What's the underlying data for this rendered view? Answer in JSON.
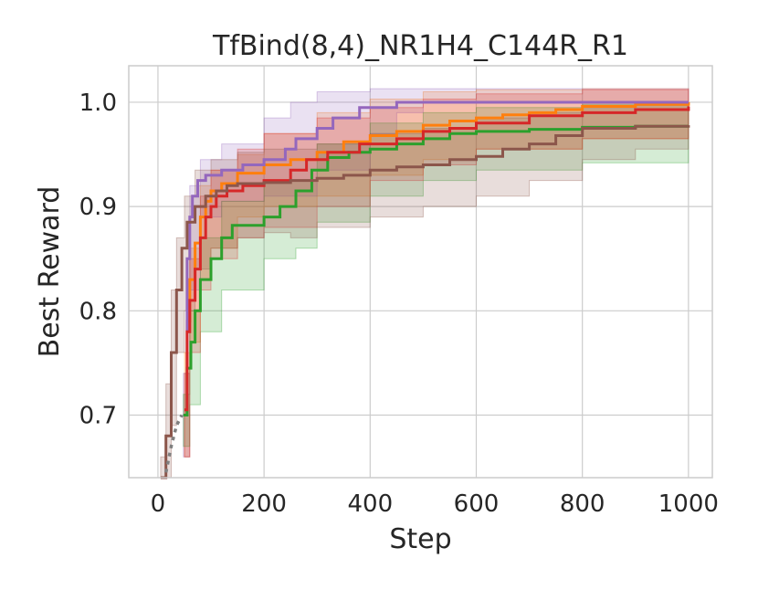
{
  "chart_data": {
    "type": "line",
    "title": "TfBind(8,4)_NR1H4_C144R_R1",
    "xlabel": "Step",
    "ylabel": "Best Reward",
    "xlim": [
      -55,
      1045
    ],
    "ylim": [
      0.64,
      1.035
    ],
    "xticks": [
      0,
      200,
      400,
      600,
      800,
      1000
    ],
    "xtick_labels": [
      "0",
      "200",
      "400",
      "600",
      "800",
      "1000"
    ],
    "yticks": [
      0.7,
      0.8,
      0.9,
      1.0
    ],
    "ytick_labels": [
      "0.7",
      "0.8",
      "0.9",
      "1.0"
    ],
    "grid": true,
    "legend": "none",
    "series": [
      {
        "color": "#ff7f0e",
        "points": [
          [
            50,
            0.705
          ],
          [
            55,
            0.79
          ],
          [
            60,
            0.83
          ],
          [
            70,
            0.865
          ],
          [
            80,
            0.89
          ],
          [
            90,
            0.905
          ],
          [
            100,
            0.915
          ],
          [
            120,
            0.922
          ],
          [
            150,
            0.932
          ],
          [
            200,
            0.94
          ],
          [
            250,
            0.945
          ],
          [
            300,
            0.952
          ],
          [
            350,
            0.962
          ],
          [
            400,
            0.968
          ],
          [
            450,
            0.972
          ],
          [
            500,
            0.978
          ],
          [
            550,
            0.982
          ],
          [
            600,
            0.985
          ],
          [
            650,
            0.988
          ],
          [
            700,
            0.99
          ],
          [
            750,
            0.993
          ],
          [
            800,
            0.996
          ],
          [
            900,
            0.998
          ],
          [
            1000,
            1.0
          ]
        ],
        "upper": [
          [
            50,
            0.76
          ],
          [
            60,
            0.86
          ],
          [
            80,
            0.92
          ],
          [
            100,
            0.935
          ],
          [
            150,
            0.95
          ],
          [
            200,
            0.97
          ],
          [
            300,
            0.99
          ],
          [
            400,
            1.003
          ],
          [
            500,
            1.01
          ],
          [
            600,
            1.012
          ],
          [
            800,
            1.013
          ],
          [
            1000,
            1.013
          ]
        ],
        "lower": [
          [
            50,
            0.66
          ],
          [
            60,
            0.77
          ],
          [
            80,
            0.83
          ],
          [
            100,
            0.86
          ],
          [
            150,
            0.89
          ],
          [
            200,
            0.9
          ],
          [
            300,
            0.91
          ],
          [
            400,
            0.93
          ],
          [
            500,
            0.945
          ],
          [
            600,
            0.955
          ],
          [
            800,
            0.965
          ],
          [
            1000,
            0.97
          ]
        ]
      },
      {
        "color": "#9467bd",
        "points": [
          [
            48,
            0.7
          ],
          [
            55,
            0.85
          ],
          [
            60,
            0.89
          ],
          [
            65,
            0.91
          ],
          [
            75,
            0.925
          ],
          [
            90,
            0.93
          ],
          [
            120,
            0.935
          ],
          [
            160,
            0.94
          ],
          [
            200,
            0.945
          ],
          [
            240,
            0.955
          ],
          [
            260,
            0.965
          ],
          [
            300,
            0.975
          ],
          [
            330,
            0.985
          ],
          [
            380,
            0.995
          ],
          [
            450,
            1.0
          ],
          [
            1000,
            1.0
          ]
        ],
        "upper": [
          [
            48,
            0.74
          ],
          [
            60,
            0.92
          ],
          [
            80,
            0.945
          ],
          [
            120,
            0.96
          ],
          [
            200,
            0.985
          ],
          [
            250,
            1.0
          ],
          [
            300,
            1.01
          ],
          [
            400,
            1.013
          ],
          [
            1000,
            1.013
          ]
        ],
        "lower": [
          [
            48,
            0.66
          ],
          [
            60,
            0.82
          ],
          [
            80,
            0.89
          ],
          [
            120,
            0.905
          ],
          [
            200,
            0.91
          ],
          [
            300,
            0.935
          ],
          [
            400,
            0.97
          ],
          [
            450,
            0.99
          ],
          [
            500,
            1.0
          ],
          [
            1000,
            1.0
          ]
        ]
      },
      {
        "color": "#2ca02c",
        "points": [
          [
            48,
            0.7
          ],
          [
            55,
            0.745
          ],
          [
            62,
            0.77
          ],
          [
            70,
            0.8
          ],
          [
            80,
            0.83
          ],
          [
            100,
            0.85
          ],
          [
            120,
            0.87
          ],
          [
            140,
            0.882
          ],
          [
            200,
            0.89
          ],
          [
            230,
            0.9
          ],
          [
            260,
            0.915
          ],
          [
            290,
            0.935
          ],
          [
            320,
            0.947
          ],
          [
            360,
            0.952
          ],
          [
            400,
            0.955
          ],
          [
            450,
            0.96
          ],
          [
            500,
            0.965
          ],
          [
            550,
            0.97
          ],
          [
            600,
            0.972
          ],
          [
            700,
            0.974
          ],
          [
            800,
            0.976
          ],
          [
            900,
            0.977
          ],
          [
            1000,
            0.977
          ]
        ],
        "upper": [
          [
            48,
            0.72
          ],
          [
            60,
            0.8
          ],
          [
            80,
            0.87
          ],
          [
            120,
            0.905
          ],
          [
            200,
            0.925
          ],
          [
            300,
            0.96
          ],
          [
            400,
            0.98
          ],
          [
            500,
            0.99
          ],
          [
            600,
            0.995
          ],
          [
            800,
            0.998
          ],
          [
            1000,
            1.0
          ]
        ],
        "lower": [
          [
            48,
            0.67
          ],
          [
            60,
            0.71
          ],
          [
            80,
            0.78
          ],
          [
            120,
            0.82
          ],
          [
            200,
            0.85
          ],
          [
            260,
            0.86
          ],
          [
            300,
            0.885
          ],
          [
            400,
            0.91
          ],
          [
            500,
            0.925
          ],
          [
            600,
            0.935
          ],
          [
            800,
            0.942
          ],
          [
            1000,
            0.942
          ]
        ]
      },
      {
        "color": "#d62728",
        "points": [
          [
            50,
            0.705
          ],
          [
            55,
            0.78
          ],
          [
            60,
            0.81
          ],
          [
            70,
            0.84
          ],
          [
            80,
            0.87
          ],
          [
            90,
            0.89
          ],
          [
            100,
            0.9
          ],
          [
            110,
            0.91
          ],
          [
            130,
            0.915
          ],
          [
            160,
            0.92
          ],
          [
            200,
            0.925
          ],
          [
            250,
            0.935
          ],
          [
            280,
            0.945
          ],
          [
            320,
            0.952
          ],
          [
            380,
            0.96
          ],
          [
            450,
            0.965
          ],
          [
            500,
            0.972
          ],
          [
            550,
            0.975
          ],
          [
            600,
            0.98
          ],
          [
            700,
            0.987
          ],
          [
            800,
            0.99
          ],
          [
            900,
            0.993
          ],
          [
            1000,
            0.996
          ]
        ],
        "upper": [
          [
            50,
            0.74
          ],
          [
            60,
            0.85
          ],
          [
            80,
            0.91
          ],
          [
            100,
            0.935
          ],
          [
            150,
            0.955
          ],
          [
            200,
            0.97
          ],
          [
            300,
            0.985
          ],
          [
            400,
            0.995
          ],
          [
            500,
            1.003
          ],
          [
            600,
            1.008
          ],
          [
            800,
            1.012
          ],
          [
            1000,
            1.013
          ]
        ],
        "lower": [
          [
            50,
            0.66
          ],
          [
            60,
            0.76
          ],
          [
            80,
            0.82
          ],
          [
            100,
            0.85
          ],
          [
            150,
            0.87
          ],
          [
            200,
            0.88
          ],
          [
            300,
            0.9
          ],
          [
            400,
            0.925
          ],
          [
            500,
            0.94
          ],
          [
            600,
            0.955
          ],
          [
            800,
            0.965
          ],
          [
            1000,
            0.975
          ]
        ]
      },
      {
        "color": "#8c564b",
        "points": [
          [
            5,
            0.62
          ],
          [
            15,
            0.68
          ],
          [
            25,
            0.76
          ],
          [
            35,
            0.82
          ],
          [
            45,
            0.86
          ],
          [
            55,
            0.885
          ],
          [
            70,
            0.9
          ],
          [
            90,
            0.91
          ],
          [
            110,
            0.915
          ],
          [
            130,
            0.92
          ],
          [
            150,
            0.922
          ],
          [
            200,
            0.923
          ],
          [
            250,
            0.925
          ],
          [
            300,
            0.927
          ],
          [
            350,
            0.93
          ],
          [
            400,
            0.935
          ],
          [
            450,
            0.938
          ],
          [
            500,
            0.94
          ],
          [
            550,
            0.945
          ],
          [
            600,
            0.948
          ],
          [
            650,
            0.955
          ],
          [
            700,
            0.96
          ],
          [
            750,
            0.968
          ],
          [
            800,
            0.975
          ],
          [
            900,
            0.977
          ],
          [
            1000,
            0.978
          ]
        ],
        "upper": [
          [
            5,
            0.66
          ],
          [
            15,
            0.73
          ],
          [
            25,
            0.82
          ],
          [
            35,
            0.87
          ],
          [
            50,
            0.91
          ],
          [
            70,
            0.935
          ],
          [
            100,
            0.945
          ],
          [
            150,
            0.952
          ],
          [
            200,
            0.955
          ],
          [
            300,
            0.96
          ],
          [
            400,
            0.97
          ],
          [
            500,
            0.975
          ],
          [
            600,
            0.985
          ],
          [
            700,
            0.99
          ],
          [
            800,
            0.995
          ],
          [
            900,
            0.997
          ],
          [
            1000,
            0.998
          ]
        ],
        "lower": [
          [
            5,
            0.58
          ],
          [
            15,
            0.63
          ],
          [
            25,
            0.69
          ],
          [
            35,
            0.76
          ],
          [
            50,
            0.8
          ],
          [
            70,
            0.84
          ],
          [
            100,
            0.86
          ],
          [
            150,
            0.87
          ],
          [
            200,
            0.875
          ],
          [
            250,
            0.87
          ],
          [
            300,
            0.88
          ],
          [
            400,
            0.89
          ],
          [
            500,
            0.9
          ],
          [
            600,
            0.91
          ],
          [
            700,
            0.925
          ],
          [
            800,
            0.945
          ],
          [
            900,
            0.955
          ],
          [
            1000,
            0.96
          ]
        ]
      },
      {
        "color": "#7f7f7f",
        "dashed": true,
        "points": [
          [
            15,
            0.645
          ],
          [
            25,
            0.67
          ],
          [
            35,
            0.69
          ],
          [
            45,
            0.7
          ]
        ]
      }
    ]
  }
}
